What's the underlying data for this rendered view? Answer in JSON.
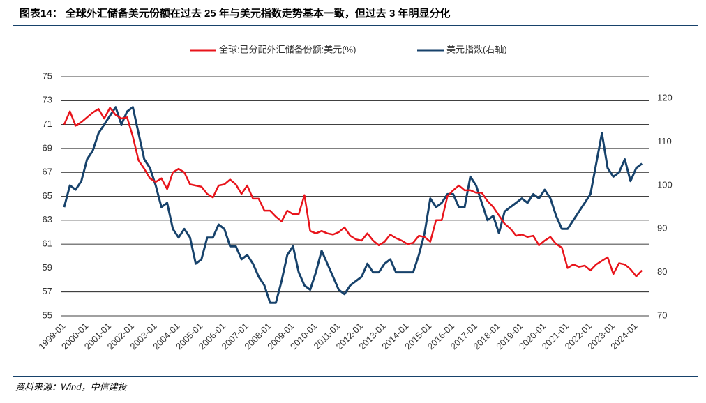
{
  "chart_data": {
    "type": "line",
    "title": "图表14：    全球外汇储备美元份额在过去 25 年与美元指数走势基本一致，但过去 3 年明显分化",
    "source": "资料来源：Wind，中信建投",
    "categories": [
      "1999-01",
      null,
      null,
      null,
      "2000-01",
      null,
      null,
      null,
      "2001-01",
      null,
      null,
      null,
      "2002-01",
      null,
      null,
      null,
      "2003-01",
      null,
      null,
      null,
      "2004-01",
      null,
      null,
      null,
      "2005-01",
      null,
      null,
      null,
      "2006-01",
      null,
      null,
      null,
      "2007-01",
      null,
      null,
      null,
      "2008-01",
      null,
      null,
      null,
      "2009-01",
      null,
      null,
      null,
      "2010-01",
      null,
      null,
      null,
      "2011-01",
      null,
      null,
      null,
      "2012-01",
      null,
      null,
      null,
      "2013-01",
      null,
      null,
      null,
      "2014-01",
      null,
      null,
      null,
      "2015-01",
      null,
      null,
      null,
      "2016-01",
      null,
      null,
      null,
      "2017-01",
      null,
      null,
      null,
      "2018-01",
      null,
      null,
      null,
      "2019-01",
      null,
      null,
      null,
      "2020-01",
      null,
      null,
      null,
      "2021-01",
      null,
      null,
      null,
      "2022-01",
      null,
      null,
      null,
      "2023-01",
      null,
      null,
      null,
      "2024-01",
      null
    ],
    "series": [
      {
        "name": "全球:已分配外汇储备份额:美元(%)",
        "color": "#e8141b",
        "axis": "y",
        "values": [
          71.0,
          72.1,
          70.9,
          71.2,
          71.6,
          72.0,
          72.3,
          71.5,
          72.4,
          71.8,
          71.5,
          71.6,
          70.0,
          68.0,
          67.3,
          66.5,
          66.2,
          66.5,
          65.6,
          67.0,
          67.3,
          67.0,
          66.0,
          65.9,
          65.8,
          65.2,
          64.9,
          65.9,
          66.0,
          66.4,
          66.0,
          65.2,
          65.9,
          64.8,
          64.8,
          63.8,
          63.8,
          63.3,
          62.9,
          63.8,
          63.5,
          63.5,
          65.1,
          62.1,
          61.9,
          62.1,
          61.9,
          61.8,
          62.0,
          62.4,
          61.7,
          61.4,
          61.3,
          61.9,
          61.3,
          60.9,
          61.2,
          61.8,
          61.5,
          61.3,
          61.0,
          61.1,
          61.7,
          61.6,
          61.2,
          63.0,
          63.0,
          65.0,
          65.5,
          65.9,
          65.5,
          65.5,
          65.3,
          65.3,
          64.6,
          64.1,
          63.4,
          62.7,
          62.3,
          61.7,
          61.8,
          61.6,
          61.7,
          60.9,
          61.3,
          61.6,
          61.0,
          60.7,
          59.0,
          59.3,
          59.1,
          59.2,
          58.8,
          59.3,
          59.6,
          59.9,
          58.5,
          59.4,
          59.3,
          58.9,
          58.3,
          58.8
        ]
      },
      {
        "name": "美元指数(右轴)",
        "color": "#17426b",
        "axis": "y2",
        "values": [
          95,
          100,
          99,
          101,
          106,
          108,
          112,
          114,
          116,
          118,
          114,
          117,
          118,
          112,
          106,
          104,
          100,
          95,
          96,
          90,
          88,
          90,
          88,
          82,
          83,
          88,
          88,
          91,
          90,
          86,
          86,
          83,
          84,
          82,
          79,
          77,
          73,
          73,
          78,
          84,
          86,
          80,
          77,
          76,
          80,
          85,
          82,
          79,
          76,
          75,
          77,
          78,
          79,
          82,
          80,
          80,
          82,
          83,
          80,
          80,
          80,
          80,
          84,
          89,
          97,
          95,
          96,
          98,
          98,
          95,
          95,
          102,
          100,
          96,
          92,
          93,
          89,
          94,
          95,
          96,
          97,
          96,
          98,
          97,
          99,
          97,
          93,
          90,
          90,
          92,
          94,
          96,
          98,
          105,
          112,
          104,
          102,
          103,
          106,
          101,
          104,
          105
        ]
      }
    ],
    "ylim": [
      55,
      75
    ],
    "yticks": [
      55,
      57,
      59,
      61,
      63,
      65,
      67,
      69,
      71,
      73,
      75
    ],
    "y2lim": [
      70,
      125
    ],
    "y2ticks": [
      70,
      80,
      90,
      100,
      110,
      120
    ],
    "grid": true
  }
}
